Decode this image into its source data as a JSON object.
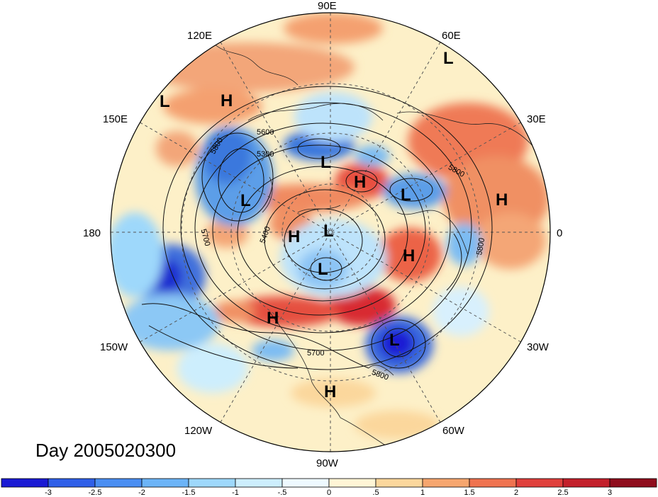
{
  "title": "Day 2005020300",
  "longitude_labels": {
    "top": "90E",
    "top_right": "60E",
    "right_upper": "30E",
    "right": "0",
    "right_lower": "30W",
    "bottom_right": "60W",
    "bottom": "90W",
    "bottom_left": "120W",
    "left_lower": "150W",
    "left": "180",
    "left_upper": "150E",
    "top_left": "120E"
  },
  "pressure_centers": [
    {
      "type": "L"
    },
    {
      "type": "H"
    },
    {
      "type": "L"
    },
    {
      "type": "L"
    },
    {
      "type": "H"
    },
    {
      "type": "L"
    },
    {
      "type": "L"
    },
    {
      "type": "H"
    },
    {
      "type": "H"
    },
    {
      "type": "L"
    },
    {
      "type": "H"
    },
    {
      "type": "L"
    },
    {
      "type": "H"
    },
    {
      "type": "L"
    },
    {
      "type": "H"
    }
  ],
  "contour_labels": [
    "5600",
    "5300",
    "5800",
    "5700",
    "5400",
    "5800",
    "5700",
    "5800"
  ],
  "colorbar": {
    "labels": [
      "-3",
      "-2.5",
      "-2",
      "-1.5",
      "-1",
      "-.5",
      "0",
      ".5",
      "1",
      "1.5",
      "2",
      "2.5",
      "3"
    ],
    "colors": [
      "#1a1ad4",
      "#2f5fe8",
      "#4a8ef2",
      "#6cb4f7",
      "#9ed8fb",
      "#cdeefd",
      "#eef9ff",
      "#fff5d6",
      "#fbd79c",
      "#f6a66f",
      "#ef7350",
      "#e0403c",
      "#c3202b",
      "#8f0d1d"
    ]
  }
}
